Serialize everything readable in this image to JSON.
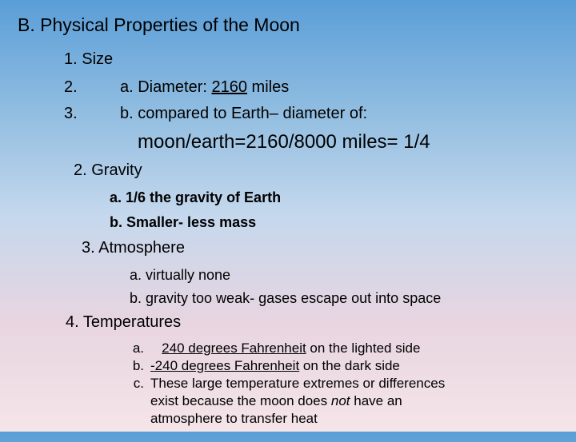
{
  "title": "B. Physical Properties of the Moon",
  "size": {
    "heading": "1. Size",
    "n2": "2.",
    "n3": "3.",
    "diameter_a": "a. Diameter: ",
    "diameter_val": "2160",
    "diameter_unit": " miles",
    "compared": "b. compared to Earth– diameter of:",
    "ratio": "moon/earth=2160/8000 miles= 1/4"
  },
  "gravity": {
    "heading": "2. Gravity",
    "a": "a. 1/6 the gravity of Earth",
    "b": "b. Smaller- less mass"
  },
  "atmo": {
    "heading": "3. Atmosphere",
    "a": "a. virtually none",
    "b": "b. gravity too weak- gases escape out into space"
  },
  "temp": {
    "heading": "4. Temperatures",
    "a_lbl": "a.",
    "a_pre": "   ",
    "a_val": "240 degrees Fahrenheit",
    "a_post": " on the lighted side",
    "b_lbl": "b.",
    "b_val": "-240 degrees Fahrenheit",
    "b_post": " on the dark side",
    "c_lbl": "c.",
    "c_1": "These large temperature extremes or differences exist because the moon does ",
    "c_not": "not",
    "c_2": " have an atmosphere to transfer heat"
  },
  "colors": {
    "text": "#000000",
    "bg_top": "#5a9ed8",
    "bg_bottom": "#f5e5e8"
  },
  "typography": {
    "title_fontsize": 23,
    "body_fontsize": 20,
    "sub_fontsize": 18,
    "temp_fontsize": 17,
    "font_family": "Arial"
  }
}
